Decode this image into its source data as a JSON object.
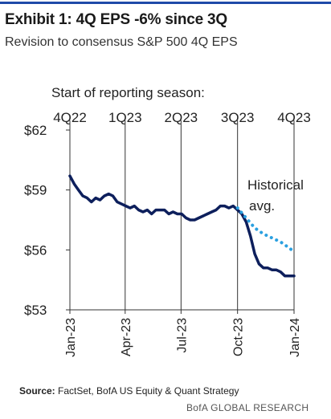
{
  "header": {
    "title": "Exhibit 1: 4Q EPS -6% since 3Q",
    "subtitle": "Revision to consensus S&P 500 4Q EPS"
  },
  "chart_data": {
    "type": "line",
    "season_heading": "Start of reporting  season:",
    "season_markers": [
      {
        "label": "4Q22",
        "date": "2023-01-01"
      },
      {
        "label": "1Q23",
        "date": "2023-04-01"
      },
      {
        "label": "2Q23",
        "date": "2023-07-01"
      },
      {
        "label": "3Q23",
        "date": "2023-10-01"
      },
      {
        "label": "4Q23",
        "date": "2024-01-01"
      }
    ],
    "y_ticks": [
      "$62",
      "$59",
      "$56",
      "$53"
    ],
    "y_tick_values": [
      62,
      59,
      56,
      53
    ],
    "ylim": [
      53,
      62
    ],
    "xlim": [
      "2023-01-01",
      "2024-01-01"
    ],
    "x_ticks": [
      "Jan-23",
      "Apr-23",
      "Jul-23",
      "Oct-23",
      "Jan-24"
    ],
    "x_tick_dates": [
      "2023-01-01",
      "2023-04-01",
      "2023-07-01",
      "2023-10-01",
      "2024-01-01"
    ],
    "annotation": [
      "Historical",
      "avg."
    ],
    "series": [
      {
        "style": "solid",
        "color": "#0d1f5c",
        "points": [
          [
            "2023-01-01",
            59.7
          ],
          [
            "2023-01-08",
            59.3
          ],
          [
            "2023-01-15",
            59.0
          ],
          [
            "2023-01-22",
            58.7
          ],
          [
            "2023-01-29",
            58.6
          ],
          [
            "2023-02-05",
            58.4
          ],
          [
            "2023-02-12",
            58.6
          ],
          [
            "2023-02-19",
            58.5
          ],
          [
            "2023-02-26",
            58.7
          ],
          [
            "2023-03-05",
            58.8
          ],
          [
            "2023-03-12",
            58.7
          ],
          [
            "2023-03-19",
            58.4
          ],
          [
            "2023-03-26",
            58.3
          ],
          [
            "2023-04-02",
            58.2
          ],
          [
            "2023-04-09",
            58.1
          ],
          [
            "2023-04-16",
            58.2
          ],
          [
            "2023-04-23",
            58.0
          ],
          [
            "2023-04-30",
            57.9
          ],
          [
            "2023-05-07",
            58.0
          ],
          [
            "2023-05-14",
            57.8
          ],
          [
            "2023-05-21",
            58.0
          ],
          [
            "2023-05-28",
            58.0
          ],
          [
            "2023-06-04",
            58.0
          ],
          [
            "2023-06-11",
            57.8
          ],
          [
            "2023-06-18",
            57.9
          ],
          [
            "2023-06-25",
            57.8
          ],
          [
            "2023-07-02",
            57.8
          ],
          [
            "2023-07-09",
            57.6
          ],
          [
            "2023-07-16",
            57.5
          ],
          [
            "2023-07-23",
            57.5
          ],
          [
            "2023-07-30",
            57.6
          ],
          [
            "2023-08-06",
            57.7
          ],
          [
            "2023-08-13",
            57.8
          ],
          [
            "2023-08-20",
            57.9
          ],
          [
            "2023-08-27",
            58.0
          ],
          [
            "2023-09-03",
            58.2
          ],
          [
            "2023-09-10",
            58.2
          ],
          [
            "2023-09-17",
            58.1
          ],
          [
            "2023-09-24",
            58.2
          ],
          [
            "2023-10-01",
            58.0
          ],
          [
            "2023-10-08",
            57.8
          ],
          [
            "2023-10-15",
            57.4
          ],
          [
            "2023-10-22",
            56.7
          ],
          [
            "2023-10-29",
            55.8
          ],
          [
            "2023-11-05",
            55.3
          ],
          [
            "2023-11-12",
            55.1
          ],
          [
            "2023-11-19",
            55.1
          ],
          [
            "2023-11-26",
            55.0
          ],
          [
            "2023-12-03",
            55.0
          ],
          [
            "2023-12-10",
            54.9
          ],
          [
            "2023-12-17",
            54.7
          ],
          [
            "2023-12-24",
            54.7
          ],
          [
            "2024-01-01",
            54.7
          ]
        ]
      },
      {
        "style": "dotted",
        "color": "#2aa0e0",
        "points": [
          [
            "2023-10-01",
            58.1
          ],
          [
            "2023-10-15",
            57.6
          ],
          [
            "2023-10-29",
            57.1
          ],
          [
            "2023-11-12",
            56.8
          ],
          [
            "2023-11-26",
            56.6
          ],
          [
            "2023-12-10",
            56.4
          ],
          [
            "2023-12-24",
            56.1
          ],
          [
            "2024-01-01",
            55.9
          ]
        ]
      }
    ]
  },
  "footer": {
    "source_label": "Source:",
    "source_text": " FactSet, BofA US Equity & Quant Strategy",
    "credit": "BofA GLOBAL RESEARCH"
  }
}
